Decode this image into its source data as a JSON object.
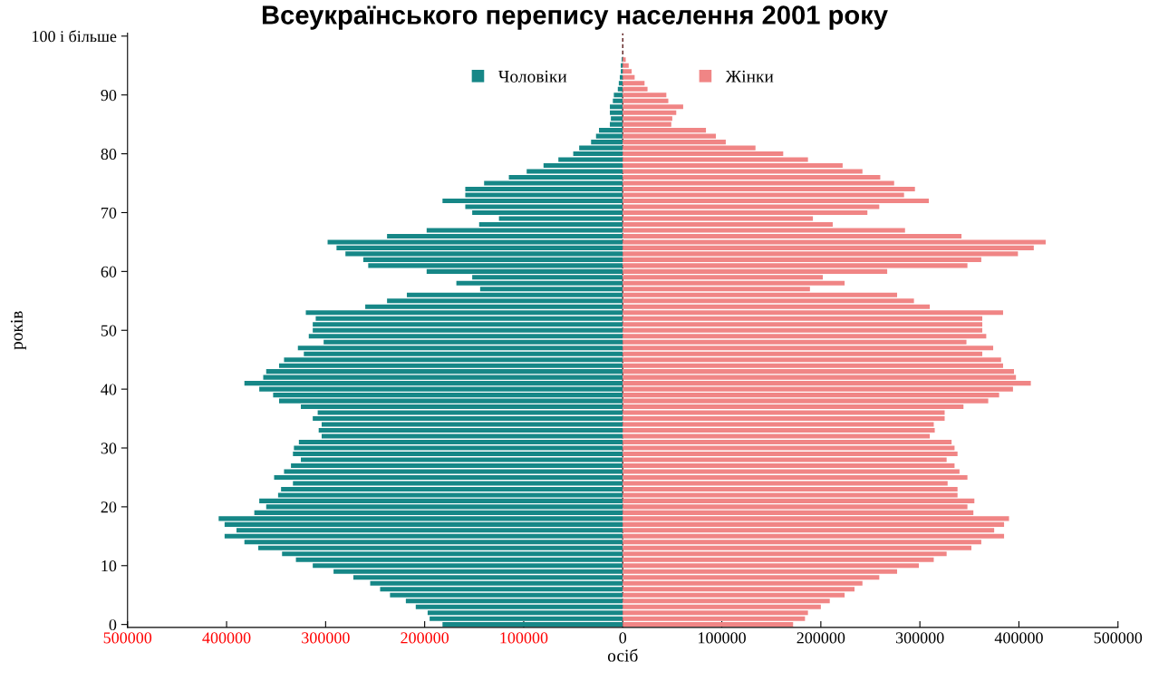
{
  "chart_data": {
    "type": "bar",
    "orientation": "horizontal",
    "stacked": true,
    "title": "Всеукраїнського перепису населення 2001 року",
    "xlabel": "осіб",
    "ylabel": "років",
    "categories": [
      "100 і більше",
      null,
      null,
      null,
      null,
      null,
      null,
      null,
      null,
      null,
      "90",
      null,
      null,
      null,
      null,
      null,
      null,
      null,
      null,
      null,
      "80",
      null,
      null,
      null,
      null,
      null,
      null,
      null,
      null,
      null,
      "70",
      null,
      null,
      null,
      null,
      null,
      null,
      null,
      null,
      null,
      "60",
      null,
      null,
      null,
      null,
      null,
      null,
      null,
      null,
      null,
      "50",
      null,
      null,
      null,
      null,
      null,
      null,
      null,
      null,
      null,
      "40",
      null,
      null,
      null,
      null,
      null,
      null,
      null,
      null,
      null,
      "30",
      null,
      null,
      null,
      null,
      null,
      null,
      null,
      null,
      null,
      "20",
      null,
      null,
      null,
      null,
      null,
      null,
      null,
      null,
      null,
      "10",
      null,
      null,
      null,
      null,
      null,
      null,
      null,
      null,
      null,
      "0"
    ],
    "series": [
      {
        "name": "Чоловіки",
        "color": "#168787",
        "values": [
          null,
          null,
          null,
          null,
          -1000,
          -2000,
          -2000,
          -3000,
          -4000,
          -5000,
          -9000,
          -10000,
          -13000,
          -13000,
          -12000,
          -13000,
          -24000,
          -27000,
          -32000,
          -44000,
          -50000,
          -65000,
          -80000,
          -97000,
          -115000,
          -140000,
          -159000,
          -159000,
          -182000,
          -159000,
          -152000,
          -125000,
          -145000,
          -198000,
          -238000,
          -298000,
          -289000,
          -280000,
          -262000,
          -257000,
          -198000,
          -152000,
          -168000,
          -144000,
          -218000,
          -238000,
          -260000,
          -320000,
          -310000,
          -313000,
          -313000,
          -317000,
          -302000,
          -328000,
          -322000,
          -342000,
          -347000,
          -360000,
          -363000,
          -382000,
          -367000,
          -353000,
          -347000,
          -325000,
          -308000,
          -313000,
          -304000,
          -307000,
          -304000,
          -327000,
          -332000,
          -333000,
          -325000,
          -335000,
          -342000,
          -352000,
          -333000,
          -345000,
          -348000,
          -367000,
          -360000,
          -372000,
          -408000,
          -402000,
          -390000,
          -402000,
          -382000,
          -368000,
          -344000,
          -330000,
          -313000,
          -292000,
          -272000,
          -255000,
          -245000,
          -235000,
          -219000,
          -209000,
          -197000,
          -195000,
          -182000
        ]
      },
      {
        "name": "Жінки",
        "color": "#f08585",
        "values": [
          null,
          null,
          null,
          null,
          3000,
          6000,
          9000,
          12000,
          22000,
          25000,
          44000,
          46000,
          61000,
          54000,
          50000,
          49000,
          84000,
          94000,
          104000,
          134000,
          162000,
          187000,
          222000,
          242000,
          260000,
          274000,
          295000,
          284000,
          309000,
          259000,
          247000,
          192000,
          212000,
          285000,
          342000,
          427000,
          415000,
          399000,
          362000,
          348000,
          267000,
          202000,
          224000,
          189000,
          277000,
          294000,
          310000,
          384000,
          363000,
          363000,
          363000,
          367000,
          347000,
          374000,
          363000,
          382000,
          384000,
          395000,
          397000,
          412000,
          394000,
          380000,
          369000,
          344000,
          325000,
          325000,
          314000,
          315000,
          310000,
          332000,
          335000,
          338000,
          327000,
          335000,
          340000,
          348000,
          328000,
          338000,
          338000,
          355000,
          348000,
          354000,
          390000,
          385000,
          375000,
          385000,
          362000,
          352000,
          327000,
          314000,
          299000,
          277000,
          259000,
          242000,
          234000,
          224000,
          209000,
          200000,
          187000,
          184000,
          172000
        ]
      }
    ],
    "xlim": [
      -500000,
      500000
    ],
    "xticks": [
      {
        "value": -500000,
        "label": "500000"
      },
      {
        "value": -400000,
        "label": "400000"
      },
      {
        "value": -300000,
        "label": "300000"
      },
      {
        "value": -200000,
        "label": "200000"
      },
      {
        "value": -100000,
        "label": "100000"
      },
      0,
      100000,
      200000,
      300000,
      400000,
      500000
    ],
    "ref_lines": [
      {
        "axis": "x",
        "value": 0,
        "color": "#5a1a1a",
        "line_style": "dashed"
      }
    ],
    "legend": "top",
    "grid": false
  }
}
